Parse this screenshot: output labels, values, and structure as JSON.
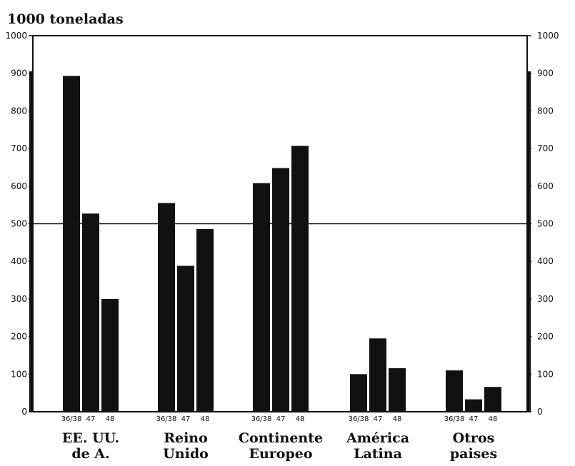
{
  "chart_data": {
    "type": "bar",
    "y_unit_label": "1000 toneladas",
    "ylim": [
      0,
      1000
    ],
    "yticks": [
      "0",
      "100",
      "200",
      "300",
      "400",
      "500",
      "600",
      "700",
      "800",
      "900",
      "1000"
    ],
    "right_yticks": [
      "0",
      "100",
      "200",
      "300",
      "400",
      "500",
      "600",
      "700",
      "800",
      "900",
      "1000"
    ],
    "reference_line": 500,
    "groups": [
      {
        "label": [
          "EE. UU.",
          "de A."
        ],
        "periods": [
          "36/38",
          "47",
          "48"
        ],
        "values": [
          893,
          527,
          300
        ]
      },
      {
        "label": [
          "Reino",
          "Unido"
        ],
        "periods": [
          "36/38",
          "47",
          "48"
        ],
        "values": [
          555,
          388,
          486
        ]
      },
      {
        "label": [
          "Continente",
          "Europeo"
        ],
        "periods": [
          "36/38",
          "47",
          "48"
        ],
        "values": [
          608,
          648,
          707
        ]
      },
      {
        "label": [
          "América",
          "Latina"
        ],
        "periods": [
          "36/38",
          "47",
          "48"
        ],
        "values": [
          100,
          195,
          116
        ]
      },
      {
        "label": [
          "Otros",
          "paises"
        ],
        "periods": [
          "36/38",
          "47",
          "48"
        ],
        "values": [
          110,
          33,
          66
        ]
      }
    ]
  }
}
